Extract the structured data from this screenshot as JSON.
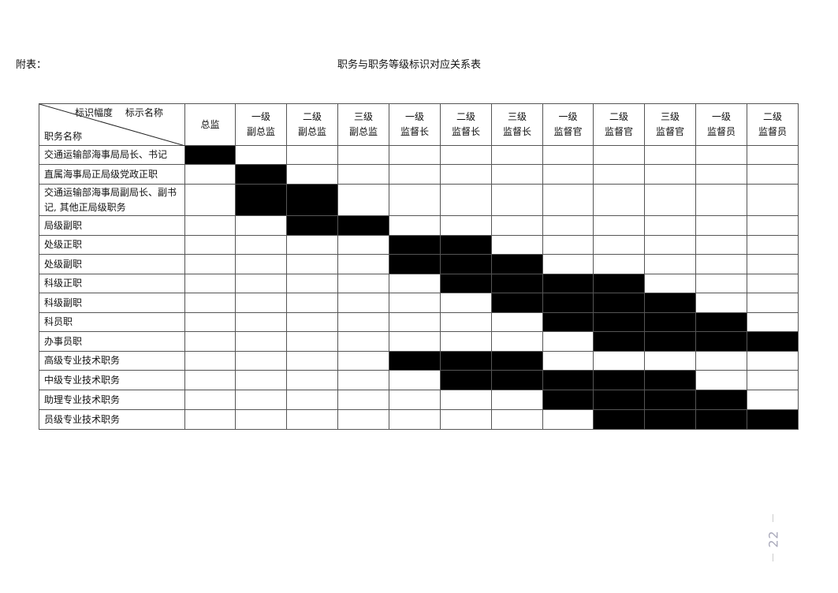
{
  "appendix_label": "附表：",
  "title": "职务与职务等级标识对应关系表",
  "table": {
    "corner_top": "标识幅度　 标示名称",
    "corner_bottom": "职务名称",
    "columns": [
      {
        "line1": "",
        "line2": "总监"
      },
      {
        "line1": "一级",
        "line2": "副总监"
      },
      {
        "line1": "二级",
        "line2": "副总监"
      },
      {
        "line1": "三级",
        "line2": "副总监"
      },
      {
        "line1": "一级",
        "line2": "监督长"
      },
      {
        "line1": "二级",
        "line2": "监督长"
      },
      {
        "line1": "三级",
        "line2": "监督长"
      },
      {
        "line1": "一级",
        "line2": "监督官"
      },
      {
        "line1": "二级",
        "line2": "监督官"
      },
      {
        "line1": "三级",
        "line2": "监督官"
      },
      {
        "line1": "一级",
        "line2": "监督员"
      },
      {
        "line1": "二级",
        "line2": "监督员"
      }
    ],
    "rows": [
      {
        "label": "交通运输部海事局局长、书记",
        "filled": [
          0
        ]
      },
      {
        "label": "直属海事局正局级党政正职",
        "filled": [
          1
        ]
      },
      {
        "label": "交通运输部海事局副局长、副书记, 其他正局级职务",
        "filled": [
          1,
          2
        ]
      },
      {
        "label": "局级副职",
        "filled": [
          2,
          3
        ]
      },
      {
        "label": "处级正职",
        "filled": [
          4,
          5
        ]
      },
      {
        "label": "处级副职",
        "filled": [
          4,
          5,
          6
        ]
      },
      {
        "label": "科级正职",
        "filled": [
          5,
          6,
          7,
          8
        ]
      },
      {
        "label": "科级副职",
        "filled": [
          6,
          7,
          8,
          9
        ]
      },
      {
        "label": "科员职",
        "filled": [
          7,
          8,
          9,
          10
        ]
      },
      {
        "label": "办事员职",
        "filled": [
          8,
          9,
          10,
          11
        ]
      },
      {
        "label": "高级专业技术职务",
        "filled": [
          4,
          5,
          6
        ]
      },
      {
        "label": "中级专业技术职务",
        "filled": [
          5,
          6,
          7,
          8,
          9
        ]
      },
      {
        "label": "助理专业技术职务",
        "filled": [
          7,
          8,
          9,
          10
        ]
      },
      {
        "label": "员级专业技术职务",
        "filled": [
          8,
          9,
          10,
          11
        ]
      }
    ]
  },
  "page_number": "22"
}
